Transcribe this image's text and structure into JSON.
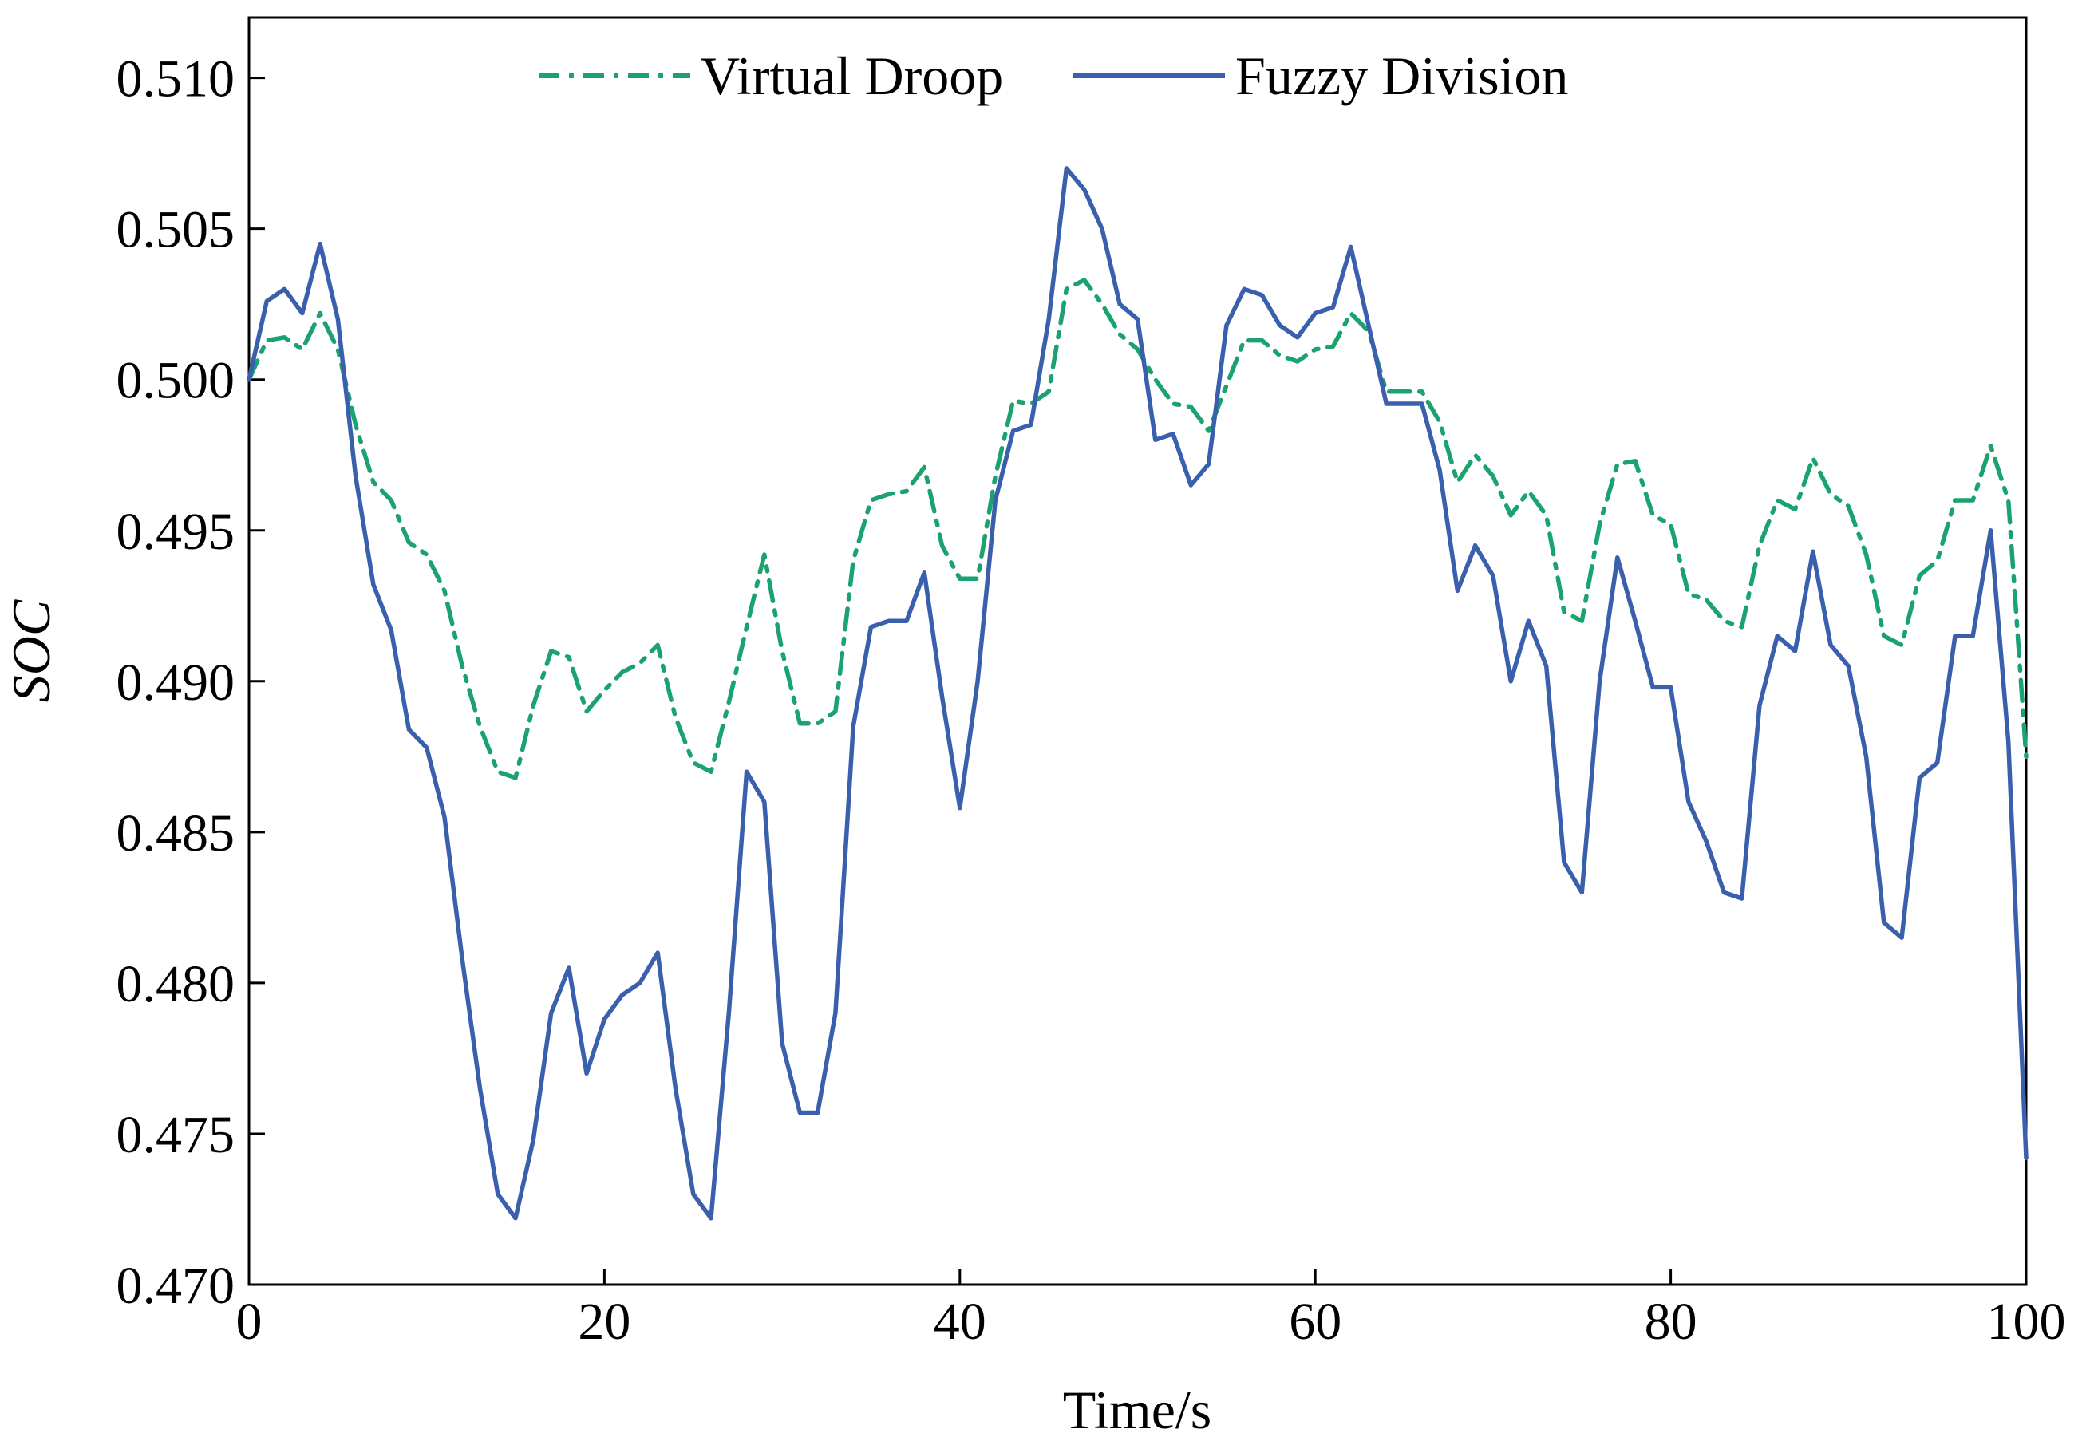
{
  "chart_data": {
    "type": "line",
    "title": "",
    "xlabel": "Time/s",
    "ylabel": "SOC",
    "xlim": [
      0,
      100
    ],
    "ylim": [
      0.47,
      0.512
    ],
    "xticks": [
      0,
      20,
      40,
      60,
      80,
      100
    ],
    "xtick_labels": [
      "0",
      "20",
      "40",
      "60",
      "80",
      "100"
    ],
    "yticks": [
      0.47,
      0.475,
      0.48,
      0.485,
      0.49,
      0.495,
      0.5,
      0.505,
      0.51
    ],
    "ytick_labels": [
      "0.470",
      "0.475",
      "0.480",
      "0.485",
      "0.490",
      "0.495",
      "0.500",
      "0.505",
      "0.510"
    ],
    "grid": false,
    "legend": "top-center",
    "series": [
      {
        "name": "Virtual Droop",
        "color": "#1aa36f",
        "style": "dashdot",
        "x": [
          0,
          1,
          2,
          3,
          4,
          5,
          6,
          7,
          8,
          9,
          10,
          11,
          12,
          13,
          14,
          15,
          16,
          17,
          18,
          19,
          20,
          21,
          22,
          23,
          24,
          25,
          26,
          27,
          28,
          29,
          30,
          31,
          32,
          33,
          34,
          35,
          36,
          37,
          38,
          39,
          40,
          41,
          42,
          43,
          44,
          45,
          46,
          47,
          48,
          49,
          50,
          51,
          52,
          53,
          54,
          55,
          56,
          57,
          58,
          59,
          60,
          61,
          62,
          63,
          64,
          65,
          66,
          67,
          68,
          69,
          70,
          71,
          72,
          73,
          74,
          75,
          76,
          77,
          78,
          79,
          80,
          81,
          82,
          83,
          84,
          85,
          86,
          87,
          88,
          89,
          90,
          91,
          92,
          93,
          94,
          95,
          96,
          97,
          98,
          99,
          100
        ],
        "values": [
          0.5,
          0.5013,
          0.5014,
          0.501,
          0.5022,
          0.501,
          0.4985,
          0.4966,
          0.496,
          0.4946,
          0.4942,
          0.493,
          0.4905,
          0.4885,
          0.487,
          0.4868,
          0.4892,
          0.491,
          0.4908,
          0.489,
          0.4897,
          0.4903,
          0.4906,
          0.4912,
          0.4888,
          0.4873,
          0.487,
          0.4893,
          0.4918,
          0.4942,
          0.491,
          0.4886,
          0.4886,
          0.489,
          0.494,
          0.496,
          0.4962,
          0.4963,
          0.4971,
          0.4945,
          0.4934,
          0.4934,
          0.4968,
          0.4993,
          0.4992,
          0.4996,
          0.503,
          0.5033,
          0.5025,
          0.5015,
          0.501,
          0.5,
          0.4992,
          0.4991,
          0.4983,
          0.4998,
          0.5013,
          0.5013,
          0.5008,
          0.5006,
          0.501,
          0.5011,
          0.5022,
          0.5016,
          0.4996,
          0.4996,
          0.4996,
          0.4986,
          0.4966,
          0.4975,
          0.4968,
          0.4955,
          0.4963,
          0.4955,
          0.4923,
          0.492,
          0.4952,
          0.4972,
          0.4973,
          0.4955,
          0.4952,
          0.4929,
          0.4927,
          0.492,
          0.4918,
          0.4945,
          0.496,
          0.4957,
          0.4974,
          0.4962,
          0.4958,
          0.4942,
          0.4915,
          0.4912,
          0.4935,
          0.494,
          0.496,
          0.496,
          0.4978,
          0.496,
          0.4875
        ]
      },
      {
        "name": "Fuzzy Division",
        "color": "#3a5fad",
        "style": "solid",
        "x": [
          0,
          1,
          2,
          3,
          4,
          5,
          6,
          7,
          8,
          9,
          10,
          11,
          12,
          13,
          14,
          15,
          16,
          17,
          18,
          19,
          20,
          21,
          22,
          23,
          24,
          25,
          26,
          27,
          28,
          29,
          30,
          31,
          32,
          33,
          34,
          35,
          36,
          37,
          38,
          39,
          40,
          41,
          42,
          43,
          44,
          45,
          46,
          47,
          48,
          49,
          50,
          51,
          52,
          53,
          54,
          55,
          56,
          57,
          58,
          59,
          60,
          61,
          62,
          63,
          64,
          65,
          66,
          67,
          68,
          69,
          70,
          71,
          72,
          73,
          74,
          75,
          76,
          77,
          78,
          79,
          80,
          81,
          82,
          83,
          84,
          85,
          86,
          87,
          88,
          89,
          90,
          91,
          92,
          93,
          94,
          95,
          96,
          97,
          98,
          99,
          100
        ],
        "values": [
          0.5,
          0.5026,
          0.503,
          0.5022,
          0.5045,
          0.502,
          0.4968,
          0.4932,
          0.4917,
          0.4884,
          0.4878,
          0.4855,
          0.4808,
          0.4765,
          0.473,
          0.4722,
          0.4748,
          0.479,
          0.4805,
          0.477,
          0.4788,
          0.4796,
          0.48,
          0.481,
          0.4765,
          0.473,
          0.4722,
          0.479,
          0.487,
          0.486,
          0.478,
          0.4757,
          0.4757,
          0.479,
          0.4885,
          0.4918,
          0.492,
          0.492,
          0.4936,
          0.4895,
          0.4858,
          0.49,
          0.496,
          0.4983,
          0.4985,
          0.502,
          0.507,
          0.5063,
          0.505,
          0.5025,
          0.502,
          0.498,
          0.4982,
          0.4965,
          0.4972,
          0.5018,
          0.503,
          0.5028,
          0.5018,
          0.5014,
          0.5022,
          0.5024,
          0.5044,
          0.5018,
          0.4992,
          0.4992,
          0.4992,
          0.497,
          0.493,
          0.4945,
          0.4935,
          0.49,
          0.492,
          0.4905,
          0.484,
          0.483,
          0.49,
          0.4941,
          0.492,
          0.4898,
          0.4898,
          0.486,
          0.4847,
          0.483,
          0.4828,
          0.4892,
          0.4915,
          0.491,
          0.4943,
          0.4912,
          0.4905,
          0.4875,
          0.482,
          0.4815,
          0.4868,
          0.4873,
          0.4915,
          0.4915,
          0.495,
          0.488,
          0.4742
        ]
      }
    ]
  }
}
